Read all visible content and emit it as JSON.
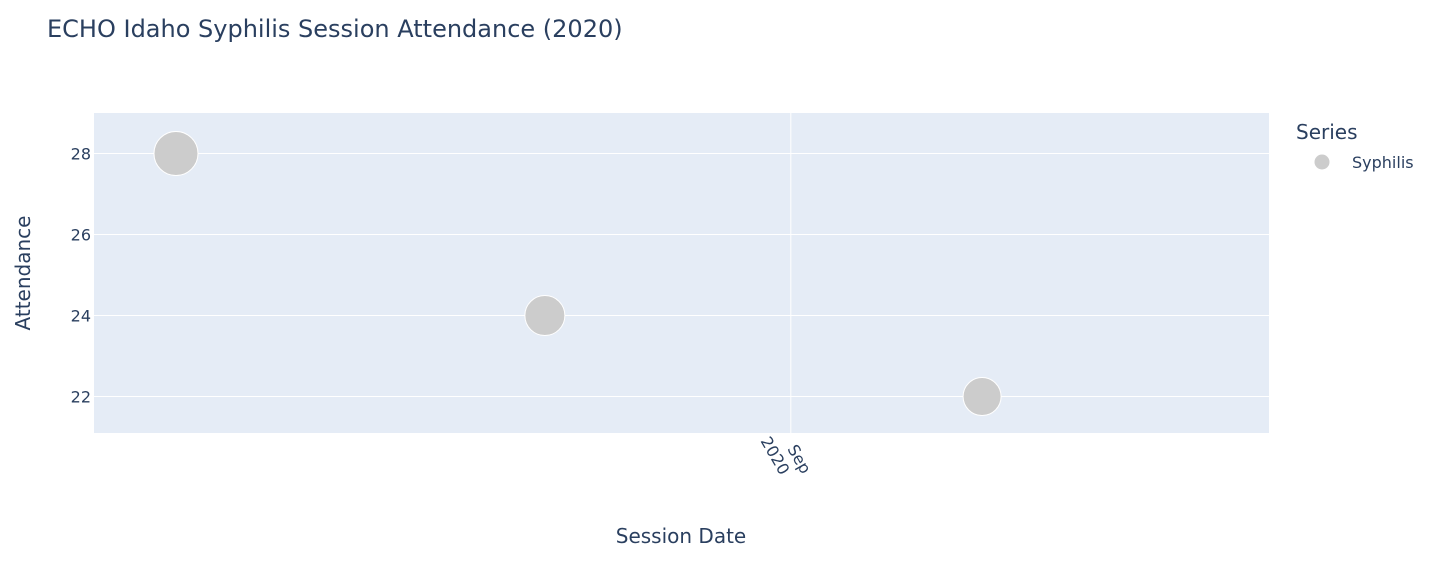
{
  "chart_data": {
    "type": "scatter",
    "title": "ECHO Idaho Syphilis Session Attendance (2020)",
    "xlabel": "Session Date",
    "ylabel": "Attendance",
    "x_axis_type": "date",
    "xlim": [
      "2020-07-12",
      "2020-10-06"
    ],
    "ylim": [
      21.1,
      29
    ],
    "y_ticks": [
      22,
      24,
      26,
      28
    ],
    "x_ticks": [
      {
        "value": "2020-09-01",
        "label_lines": [
          "Sep",
          "2020"
        ]
      }
    ],
    "grid": true,
    "legend": {
      "title": "Series",
      "position": "right"
    },
    "series": [
      {
        "name": "Syphilis",
        "color": "#cccccc",
        "marker": "circle",
        "points": [
          {
            "x": "2020-07-18",
            "y": 28
          },
          {
            "x": "2020-08-14",
            "y": 24
          },
          {
            "x": "2020-09-15",
            "y": 22
          }
        ]
      }
    ]
  },
  "colors": {
    "plot_background": "#e5ecf6",
    "grid": "#ffffff",
    "text": "#2a3f5f",
    "marker": "#cccccc"
  }
}
